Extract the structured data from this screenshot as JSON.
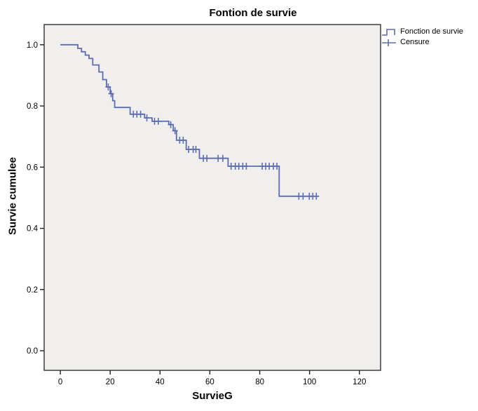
{
  "chart_data": {
    "type": "line",
    "subtype": "kaplan-meier-step",
    "title": "Fontion de survie",
    "xlabel": "SurvieG",
    "ylabel": "Survie cumulee",
    "xlim": [
      -6.5,
      128.5
    ],
    "ylim": [
      -0.064,
      1.066
    ],
    "xticks": [
      "0",
      "20",
      "40",
      "60",
      "80",
      "100",
      "120"
    ],
    "xtick_values": [
      0,
      20,
      40,
      60,
      80,
      100,
      120
    ],
    "yticks": [
      "0.0",
      "0.2",
      "0.4",
      "0.6",
      "0.8",
      "1.0"
    ],
    "ytick_values": [
      0.0,
      0.2,
      0.4,
      0.6,
      0.8,
      1.0
    ],
    "grid": false,
    "legend_position": "top-right-outside",
    "legend": [
      {
        "label": "Fonction de survie",
        "marker": "step-line"
      },
      {
        "label": "Censure",
        "marker": "plus"
      }
    ],
    "series": [
      {
        "name": "Fonction de survie",
        "start": [
          0,
          1.0
        ],
        "end_time": 103.5,
        "steps": [
          [
            7,
            0.988
          ],
          [
            8.5,
            0.977
          ],
          [
            10,
            0.966
          ],
          [
            11.5,
            0.955
          ],
          [
            13,
            0.934
          ],
          [
            15.5,
            0.911
          ],
          [
            17,
            0.886
          ],
          [
            18.5,
            0.862
          ],
          [
            20,
            0.84
          ],
          [
            21,
            0.817
          ],
          [
            21.8,
            0.795
          ],
          [
            28,
            0.773
          ],
          [
            33.8,
            0.761
          ],
          [
            36.8,
            0.75
          ],
          [
            43.5,
            0.739
          ],
          [
            45.3,
            0.719
          ],
          [
            46.6,
            0.688
          ],
          [
            50.5,
            0.658
          ],
          [
            55.8,
            0.629
          ],
          [
            67.3,
            0.603
          ],
          [
            87.8,
            0.505
          ]
        ]
      }
    ],
    "censors": [
      [
        19.2,
        0.862
      ],
      [
        20.4,
        0.84
      ],
      [
        29.3,
        0.773
      ],
      [
        30.7,
        0.773
      ],
      [
        32.2,
        0.773
      ],
      [
        34.7,
        0.761
      ],
      [
        37.8,
        0.75
      ],
      [
        39.3,
        0.75
      ],
      [
        44.3,
        0.739
      ],
      [
        46.0,
        0.719
      ],
      [
        47.9,
        0.688
      ],
      [
        49.3,
        0.688
      ],
      [
        51.5,
        0.658
      ],
      [
        53.3,
        0.658
      ],
      [
        54.4,
        0.658
      ],
      [
        57.4,
        0.629
      ],
      [
        58.8,
        0.629
      ],
      [
        63.3,
        0.629
      ],
      [
        65.2,
        0.629
      ],
      [
        68.5,
        0.603
      ],
      [
        70.2,
        0.603
      ],
      [
        71.6,
        0.603
      ],
      [
        73.2,
        0.603
      ],
      [
        74.6,
        0.603
      ],
      [
        81.0,
        0.603
      ],
      [
        82.4,
        0.603
      ],
      [
        83.8,
        0.603
      ],
      [
        85.5,
        0.603
      ],
      [
        86.9,
        0.603
      ],
      [
        95.7,
        0.505
      ],
      [
        97.4,
        0.505
      ],
      [
        99.9,
        0.505
      ],
      [
        101.3,
        0.505
      ],
      [
        102.7,
        0.505
      ]
    ],
    "colors": {
      "line": "#5C6DB3",
      "plot_fill": "#F0EFED",
      "plot_border": "#3F3F3F",
      "tick": "#2B2B2B",
      "text": "#000000",
      "background": "#FFFFFF"
    }
  }
}
